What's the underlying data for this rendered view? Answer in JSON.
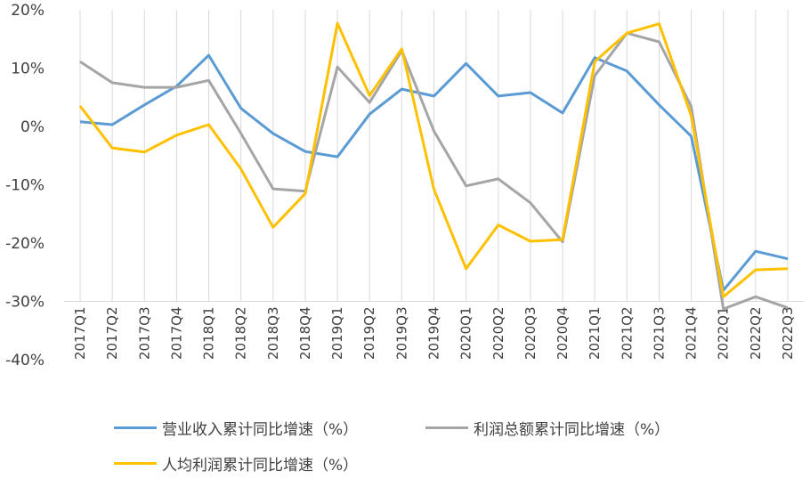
{
  "chart_data": {
    "type": "line",
    "categories": [
      "2017Q1",
      "2017Q2",
      "2017Q3",
      "2017Q4",
      "2018Q1",
      "2018Q2",
      "2018Q3",
      "2018Q4",
      "2019Q1",
      "2019Q2",
      "2019Q3",
      "2019Q4",
      "2020Q1",
      "2020Q2",
      "2020Q3",
      "2020Q4",
      "2021Q1",
      "2021Q2",
      "2021Q3",
      "2021Q4",
      "2022Q1",
      "2022Q2",
      "2022Q3"
    ],
    "ylim": [
      -40,
      20
    ],
    "yticks": [
      20,
      10,
      0,
      -10,
      -20,
      -30,
      -40
    ],
    "ytick_labels": [
      "20%",
      "10%",
      "0%",
      "-10%",
      "-20%",
      "-30%",
      "-40%"
    ],
    "grid": "vertical",
    "legend": "bottom",
    "series": [
      {
        "name": "营业收入累计同比增速（%）",
        "color": "#5B9BD5",
        "values": [
          0.8,
          0.3,
          3.7,
          6.9,
          12.2,
          3.1,
          -1.2,
          -4.3,
          -5.2,
          2.1,
          6.4,
          5.2,
          10.8,
          5.2,
          5.8,
          2.3,
          11.8,
          9.5,
          3.7,
          -1.7,
          -28.1,
          -21.4,
          -22.7
        ]
      },
      {
        "name": "利润总额累计同比增速（%）",
        "color": "#A5A5A5",
        "values": [
          11.1,
          7.5,
          6.7,
          6.7,
          7.9,
          -1.2,
          -10.7,
          -11.1,
          10.2,
          4.1,
          13.0,
          -0.8,
          -10.2,
          -9.0,
          -13.1,
          -19.8,
          8.7,
          16.0,
          14.5,
          3.4,
          -31.3,
          -29.2,
          -31.1
        ]
      },
      {
        "name": "人均利润累计同比增速（%）",
        "color": "#FFC000",
        "values": [
          3.5,
          -3.7,
          -4.4,
          -1.5,
          0.3,
          -7.3,
          -17.3,
          -11.5,
          17.7,
          5.3,
          13.3,
          -10.8,
          -24.4,
          -16.9,
          -19.7,
          -19.4,
          11.1,
          16.0,
          17.6,
          1.8,
          -29.2,
          -24.6,
          -24.4
        ]
      }
    ]
  }
}
